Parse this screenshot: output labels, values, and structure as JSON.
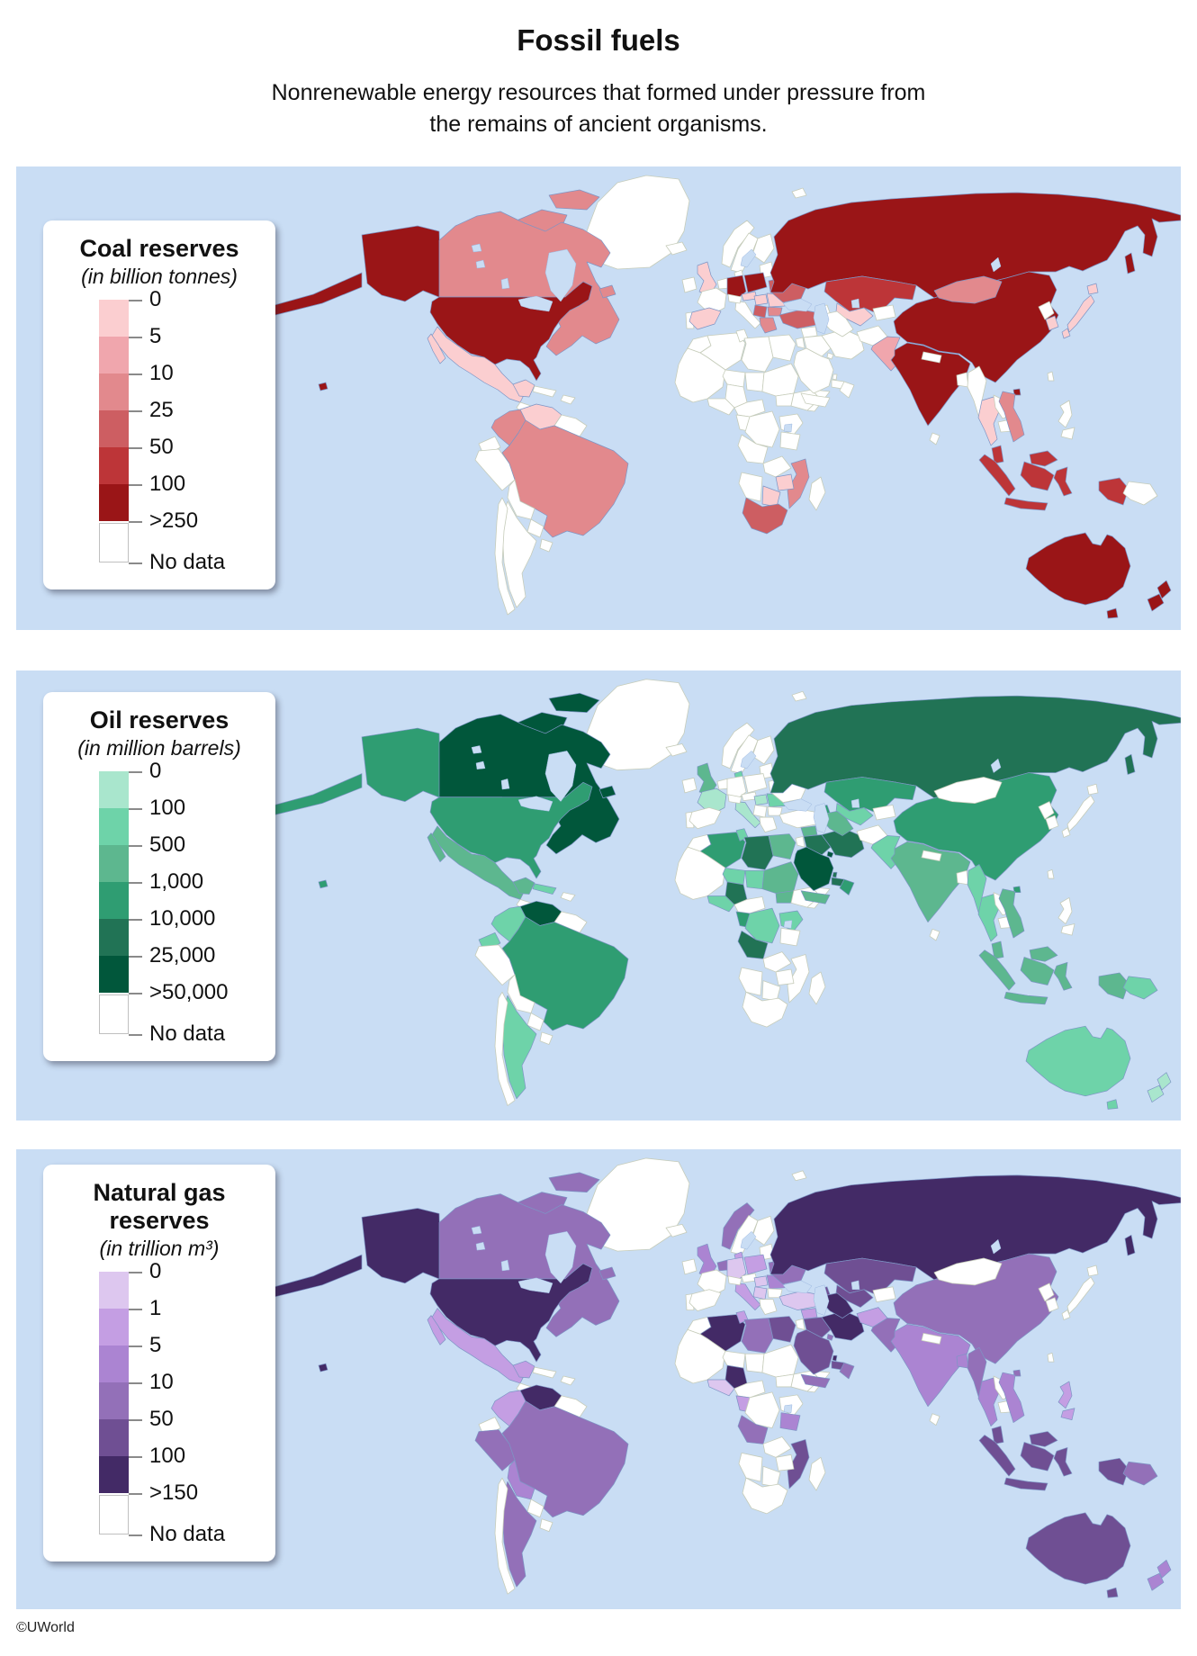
{
  "header": {
    "title": "Fossil fuels",
    "subtitle": "Nonrenewable energy resources that formed under pressure from\nthe remains of ancient organisms."
  },
  "footer": {
    "credit": "©UWorld"
  },
  "style_colors": {
    "ocean": "#c9ddf4",
    "no_data_fill": "#ffffff",
    "border_data": "#7d95c5",
    "border_no_data": "#c6ccba",
    "lake_stroke": "#9db8e0"
  },
  "maps": [
    {
      "key": "coal",
      "title": "Coal reserves",
      "unit": "(in billion tonnes)",
      "ticks": [
        "0",
        "5",
        "10",
        "25",
        "50",
        "100",
        ">250"
      ],
      "no_data_label": "No data",
      "colors": [
        "#fbced0",
        "#f0a6ad",
        "#e2898d",
        "#cd5e62",
        "#bd3538",
        "#9a1517"
      ],
      "countries": {
        "usa": 6,
        "canada": 3,
        "mexico": 1,
        "colombia": 3,
        "venezuela": 1,
        "brazil": 3,
        "uk": 1,
        "spain": 1,
        "germany": 6,
        "poland": 6,
        "czech": 1,
        "hungary": 1,
        "romania": 1,
        "serbia": 4,
        "bulgaria": 3,
        "greece": 3,
        "ukraine": 4,
        "turkey": 4,
        "russia": 6,
        "kazakhstan": 5,
        "uzbekistan": 1,
        "mongolia": 3,
        "china": 6,
        "india": 6,
        "pakistan": 2,
        "thailand": 1,
        "vietnam": 3,
        "skorea": 1,
        "japan": 1,
        "indonesia": 5,
        "malaysia": 5,
        "australia": 6,
        "nz": 6,
        "safrica": 4,
        "zimbabwe": 1,
        "botswana": 1,
        "mozambique": 3
      }
    },
    {
      "key": "oil",
      "title": "Oil reserves",
      "unit": "(in million barrels)",
      "ticks": [
        "0",
        "100",
        "500",
        "1,000",
        "10,000",
        "25,000",
        ">50,000"
      ],
      "no_data_label": "No data",
      "colors": [
        "#a9e6cd",
        "#6ed3a9",
        "#5db78f",
        "#2f9d72",
        "#217355",
        "#01573b"
      ],
      "countries": {
        "usa": 4,
        "canada": 6,
        "mexico": 3,
        "cuba": 2,
        "colombia": 2,
        "venezuela": 6,
        "ecuador": 2,
        "brazil": 4,
        "argentina": 2,
        "uk": 3,
        "denmark": 2,
        "france": 1,
        "italy": 1,
        "hungary": 1,
        "romania": 2,
        "russia": 5,
        "kazakhstan": 4,
        "azerbaijan": 4,
        "turkmenistan": 3,
        "uzbekistan": 2,
        "china": 4,
        "india": 3,
        "pakistan": 2,
        "myanmar": 2,
        "thailand": 2,
        "vietnam": 3,
        "malaysia": 3,
        "indonesia": 3,
        "png": 2,
        "australia": 2,
        "nz": 1,
        "saudi": 6,
        "iran": 5,
        "iraq": 5,
        "kuwait": 6,
        "uae": 5,
        "qatar": 5,
        "oman": 4,
        "yemen": 3,
        "syria": 3,
        "algeria": 4,
        "tunisia": 2,
        "libya": 5,
        "egypt": 3,
        "niger": 2,
        "chad": 2,
        "sudan": 3,
        "ssudan": 3,
        "nigeria": 5,
        "wafcoast": 2,
        "gabon": 4,
        "drc": 2,
        "eafrica": 2,
        "angola": 5
      }
    },
    {
      "key": "gas",
      "title": "Natural gas reserves",
      "unit": "(in trillion m³)",
      "ticks": [
        "0",
        "1",
        "5",
        "10",
        "50",
        "100",
        ">150"
      ],
      "no_data_label": "No data",
      "colors": [
        "#ddc7ef",
        "#c49ee3",
        "#ab84d2",
        "#9370b8",
        "#6f4f93",
        "#432a66"
      ],
      "countries": {
        "usa": 6,
        "canada": 4,
        "mexico": 2,
        "colombia": 2,
        "venezuela": 6,
        "peru": 4,
        "brazil": 4,
        "bolivia": 3,
        "argentina": 4,
        "uk": 3,
        "norway": 4,
        "benelux": 4,
        "denmark": 2,
        "germany": 1,
        "poland": 2,
        "italy": 2,
        "hungary": 1,
        "romania": 3,
        "serbia": 1,
        "ukraine": 4,
        "turkey": 1,
        "russia": 6,
        "kazakhstan": 5,
        "azerbaijan": 5,
        "uzbekistan": 5,
        "turkmenistan": 6,
        "afghanistan": 2,
        "pakistan": 4,
        "india": 3,
        "bangladesh": 3,
        "myanmar": 4,
        "thailand": 3,
        "vietnam": 3,
        "malaysia": 5,
        "china": 4,
        "indonesia": 5,
        "philippines": 2,
        "png": 4,
        "australia": 5,
        "nz": 3,
        "iran": 6,
        "iraq": 5,
        "saudi": 5,
        "kuwait": 4,
        "uae": 5,
        "qatar": 6,
        "oman": 4,
        "yemen": 4,
        "syria": 2,
        "algeria": 6,
        "tunisia": 2,
        "libya": 4,
        "egypt": 5,
        "nigeria": 6,
        "wafcoast": 1,
        "gabon": 2,
        "angola": 4,
        "mozambique": 5,
        "tanzania": 3
      }
    }
  ]
}
